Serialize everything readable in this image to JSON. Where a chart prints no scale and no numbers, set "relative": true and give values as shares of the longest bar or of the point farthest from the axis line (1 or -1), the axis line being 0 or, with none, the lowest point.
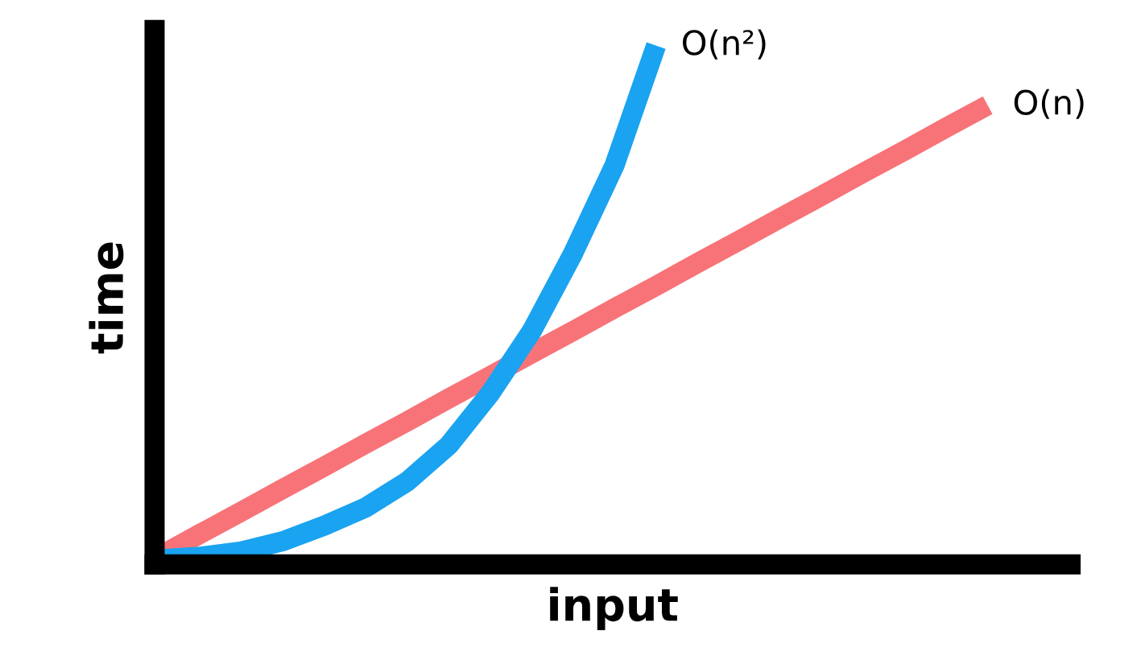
{
  "chart_data": {
    "type": "line",
    "relative": true,
    "xlabel": "input",
    "ylabel": "time",
    "legend": false,
    "marker": "none",
    "line_style": "solid",
    "categories": [
      null,
      null,
      null,
      null,
      null,
      null,
      null,
      null,
      null,
      null,
      null,
      null,
      null,
      null,
      null,
      null,
      null,
      null,
      null,
      null,
      null
    ],
    "series": [
      {
        "name": "O(n)",
        "color": "#f87378",
        "values": [
          0.015,
          0.059,
          0.102,
          0.146,
          0.189,
          0.233,
          0.276,
          0.32,
          0.363,
          0.407,
          0.45,
          0.494,
          0.537,
          0.581,
          0.624,
          0.668,
          0.711,
          0.755,
          0.798,
          0.842,
          0.885
        ]
      },
      {
        "name": "O(n²)",
        "color": "#1aa3f0",
        "values": [
          0.01,
          0.015,
          0.025,
          0.045,
          0.075,
          0.11,
          0.16,
          0.23,
          0.33,
          0.45,
          0.6,
          0.77,
          1.0,
          null,
          null,
          null,
          null,
          null,
          null,
          null,
          null
        ]
      }
    ]
  }
}
